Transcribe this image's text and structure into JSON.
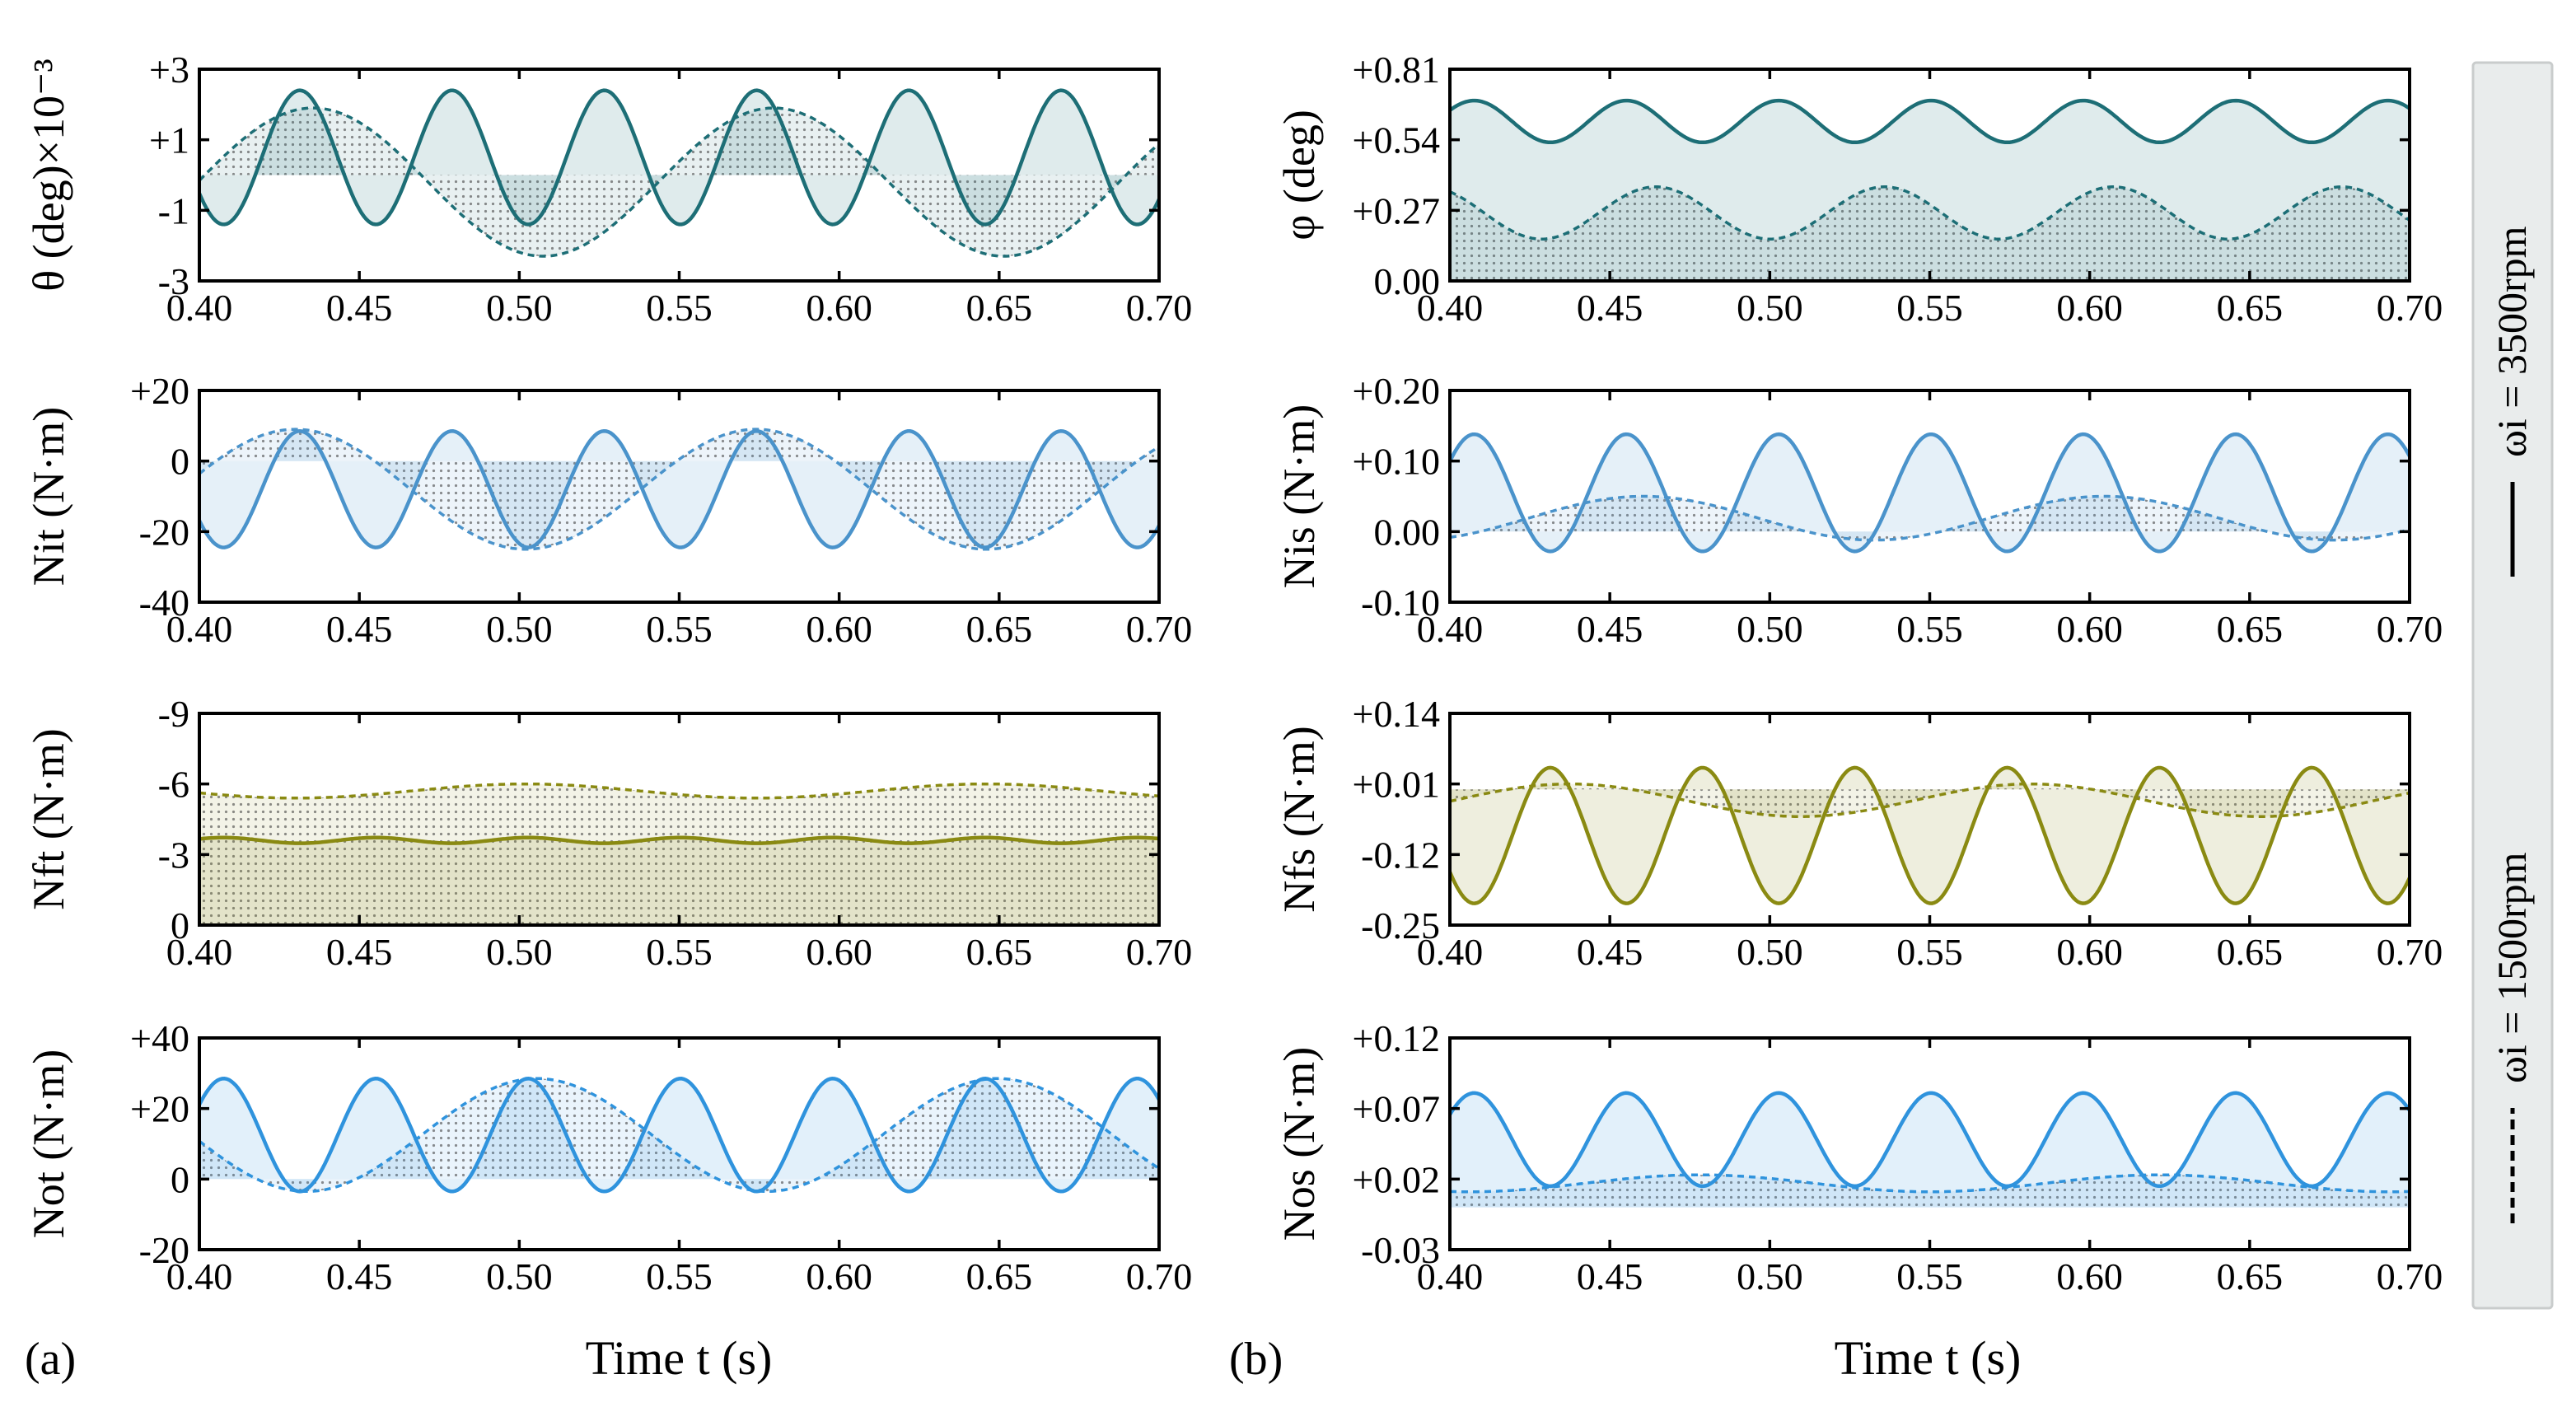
{
  "colors": {
    "theta": "#1d6e76",
    "torque_input": "#4a93cb",
    "torque_friction": "#8a8a12",
    "torque_output": "#2f93dd",
    "legend_box": "#e9ecec",
    "legend_border": "#c9cccc"
  },
  "figure": {
    "panel_a": "(a)",
    "panel_b": "(b)",
    "xlabel_a": "Time t (s)",
    "xlabel_b": "Time t (s)"
  },
  "legend": {
    "solid_label": "ωi = 3500rpm",
    "dashed_label": "ωi = 1500rpm"
  },
  "chart_data": [
    {
      "id": "a1",
      "type": "line",
      "column": "a",
      "row": 1,
      "color_key": "theta",
      "ylabel": "θ (deg)×10⁻³",
      "ylim": [
        -3,
        3
      ],
      "y_reversed": false,
      "yticks": [
        3,
        1,
        -1,
        -3
      ],
      "ytick_labels": [
        "+3",
        "+1",
        "-1",
        "-3"
      ],
      "xlim": [
        0.4,
        0.7
      ],
      "xticks": [
        0.4,
        0.45,
        0.5,
        0.55,
        0.6,
        0.65,
        0.7
      ],
      "xtick_labels": [
        "0.40",
        "0.45",
        "0.50",
        "0.55",
        "0.60",
        "0.65",
        "0.70"
      ],
      "fill_baseline": 0,
      "series": [
        {
          "name": "3500rpm",
          "style": "solid",
          "mean": 0.5,
          "amp": 1.9,
          "period": 0.0476,
          "phase": 0.4195
        },
        {
          "name": "1500rpm",
          "style": "dashed",
          "mean": -0.2,
          "amp": 2.1,
          "period": 0.144,
          "phase": 0.3995
        }
      ]
    },
    {
      "id": "a2",
      "type": "line",
      "column": "a",
      "row": 2,
      "color_key": "torque_input",
      "ylabel": "Nit (N·m)",
      "ylim": [
        -40,
        20
      ],
      "y_reversed": false,
      "yticks": [
        20,
        0,
        -20,
        -40
      ],
      "ytick_labels": [
        "+20",
        "0",
        "-20",
        "-40"
      ],
      "xlim": [
        0.4,
        0.7
      ],
      "xticks": [
        0.4,
        0.45,
        0.5,
        0.55,
        0.6,
        0.65,
        0.7
      ],
      "xtick_labels": [
        "0.40",
        "0.45",
        "0.50",
        "0.55",
        "0.60",
        "0.65",
        "0.70"
      ],
      "fill_baseline": 0,
      "series": [
        {
          "name": "3500rpm",
          "style": "solid",
          "mean": -8,
          "amp": 16.5,
          "period": 0.0476,
          "phase": 0.4195
        },
        {
          "name": "1500rpm",
          "style": "dashed",
          "mean": -8,
          "amp": 17,
          "period": 0.144,
          "phase": 0.394
        }
      ]
    },
    {
      "id": "a3",
      "type": "line",
      "column": "a",
      "row": 3,
      "color_key": "torque_friction",
      "ylabel": "Nft (N·m)",
      "ylim": [
        0,
        -9
      ],
      "y_reversed": true,
      "yticks": [
        -9,
        -6,
        -3,
        0
      ],
      "ytick_labels": [
        "-9",
        "-6",
        "-3",
        "0"
      ],
      "xlim": [
        0.4,
        0.7
      ],
      "xticks": [
        0.4,
        0.45,
        0.5,
        0.55,
        0.6,
        0.65,
        0.7
      ],
      "xtick_labels": [
        "0.40",
        "0.45",
        "0.50",
        "0.55",
        "0.60",
        "0.65",
        "0.70"
      ],
      "fill_baseline": 0,
      "series": [
        {
          "name": "3500rpm",
          "style": "solid",
          "mean": -3.6,
          "amp": 0.12,
          "period": 0.0476,
          "phase": 0.4195
        },
        {
          "name": "1500rpm",
          "style": "dashed",
          "mean": -5.7,
          "amp": 0.3,
          "period": 0.144,
          "phase": 0.394
        }
      ]
    },
    {
      "id": "a4",
      "type": "line",
      "column": "a",
      "row": 4,
      "color_key": "torque_output",
      "ylabel": "Not (N·m)",
      "ylim": [
        -20,
        40
      ],
      "y_reversed": false,
      "yticks": [
        40,
        20,
        0,
        -20
      ],
      "ytick_labels": [
        "+40",
        "+20",
        "0",
        "-20"
      ],
      "xlim": [
        0.4,
        0.7
      ],
      "xticks": [
        0.4,
        0.45,
        0.5,
        0.55,
        0.6,
        0.65,
        0.7
      ],
      "xtick_labels": [
        "0.40",
        "0.45",
        "0.50",
        "0.55",
        "0.60",
        "0.65",
        "0.70"
      ],
      "fill_baseline": 0,
      "series": [
        {
          "name": "3500rpm",
          "style": "solid",
          "mean": 12.5,
          "amp": 16,
          "period": 0.0476,
          "phase": 0.3957
        },
        {
          "name": "1500rpm",
          "style": "dashed",
          "mean": 12.5,
          "amp": 16,
          "period": 0.144,
          "phase": 0.4695
        }
      ]
    },
    {
      "id": "b1",
      "type": "line",
      "column": "b",
      "row": 1,
      "color_key": "theta",
      "ylabel": "φ (deg)",
      "ylim": [
        0,
        0.81
      ],
      "y_reversed": false,
      "yticks": [
        0.81,
        0.54,
        0.27,
        0.0
      ],
      "ytick_labels": [
        "+0.81",
        "+0.54",
        "+0.27",
        "0.00"
      ],
      "xlim": [
        0.4,
        0.7
      ],
      "xticks": [
        0.4,
        0.45,
        0.5,
        0.55,
        0.6,
        0.65,
        0.7
      ],
      "xtick_labels": [
        "0.40",
        "0.45",
        "0.50",
        "0.55",
        "0.60",
        "0.65",
        "0.70"
      ],
      "fill_baseline": 0,
      "series": [
        {
          "name": "3500rpm",
          "style": "solid",
          "mean": 0.61,
          "amp": 0.08,
          "period": 0.0476,
          "phase": 0.3957
        },
        {
          "name": "1500rpm",
          "style": "dashed",
          "mean": 0.26,
          "amp": 0.1,
          "period": 0.0715,
          "phase": 0.4465
        }
      ]
    },
    {
      "id": "b2",
      "type": "line",
      "column": "b",
      "row": 2,
      "color_key": "torque_input",
      "ylabel": "Nis (N·m)",
      "ylim": [
        -0.1,
        0.2
      ],
      "y_reversed": false,
      "yticks": [
        0.2,
        0.1,
        0.0,
        -0.1
      ],
      "ytick_labels": [
        "+0.20",
        "+0.10",
        "0.00",
        "-0.10"
      ],
      "xlim": [
        0.4,
        0.7
      ],
      "xticks": [
        0.4,
        0.45,
        0.5,
        0.55,
        0.6,
        0.65,
        0.7
      ],
      "xtick_labels": [
        "0.40",
        "0.45",
        "0.50",
        "0.55",
        "0.60",
        "0.65",
        "0.70"
      ],
      "fill_baseline": 0,
      "series": [
        {
          "name": "3500rpm",
          "style": "solid",
          "mean": 0.055,
          "amp": 0.083,
          "period": 0.0476,
          "phase": 0.3957
        },
        {
          "name": "1500rpm",
          "style": "dashed",
          "mean": 0.019,
          "amp": 0.031,
          "period": 0.144,
          "phase": 0.4245
        }
      ]
    },
    {
      "id": "b3",
      "type": "line",
      "column": "b",
      "row": 3,
      "color_key": "torque_friction",
      "ylabel": "Nfs (N·m)",
      "ylim": [
        -0.25,
        0.14
      ],
      "y_reversed": false,
      "yticks": [
        0.14,
        0.01,
        -0.12,
        -0.25
      ],
      "ytick_labels": [
        "+0.14",
        "+0.01",
        "-0.12",
        "-0.25"
      ],
      "xlim": [
        0.4,
        0.7
      ],
      "xticks": [
        0.4,
        0.45,
        0.5,
        0.55,
        0.6,
        0.65,
        0.7
      ],
      "xtick_labels": [
        "0.40",
        "0.45",
        "0.50",
        "0.55",
        "0.60",
        "0.65",
        "0.70"
      ],
      "fill_baseline": 0,
      "series": [
        {
          "name": "3500rpm",
          "style": "solid",
          "mean": -0.085,
          "amp": 0.125,
          "period": 0.0476,
          "phase": 0.4195
        },
        {
          "name": "1500rpm",
          "style": "dashed",
          "mean": -0.02,
          "amp": 0.03,
          "period": 0.144,
          "phase": 0.5455
        }
      ]
    },
    {
      "id": "b4",
      "type": "line",
      "column": "b",
      "row": 4,
      "color_key": "torque_output",
      "ylabel": "Nos (N·m)",
      "ylim": [
        -0.03,
        0.12
      ],
      "y_reversed": false,
      "yticks": [
        0.12,
        0.07,
        0.02,
        -0.03
      ],
      "ytick_labels": [
        "+0.12",
        "+0.07",
        "+0.02",
        "-0.03"
      ],
      "xlim": [
        0.4,
        0.7
      ],
      "xticks": [
        0.4,
        0.45,
        0.5,
        0.55,
        0.6,
        0.65,
        0.7
      ],
      "xtick_labels": [
        "0.40",
        "0.45",
        "0.50",
        "0.55",
        "0.60",
        "0.65",
        "0.70"
      ],
      "fill_baseline": 0,
      "series": [
        {
          "name": "3500rpm",
          "style": "solid",
          "mean": 0.048,
          "amp": 0.033,
          "period": 0.0476,
          "phase": 0.3957
        },
        {
          "name": "1500rpm",
          "style": "dashed",
          "mean": 0.017,
          "amp": 0.006,
          "period": 0.144,
          "phase": 0.442
        }
      ]
    }
  ]
}
